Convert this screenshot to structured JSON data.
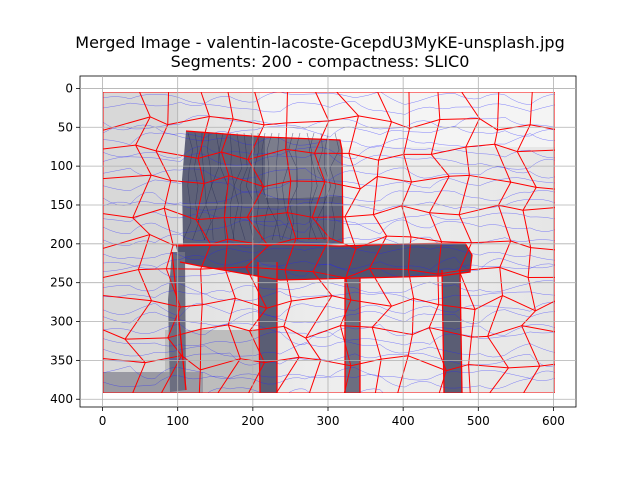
{
  "chart_data": {
    "type": "image",
    "title": "Merged Image - valentin-lacoste-GcepdU3MyKE-unsplash.jpg",
    "subtitle": "Segments: 200 - compactness: SLIC0",
    "x_ticks": [
      "0",
      "100",
      "200",
      "300",
      "400",
      "500",
      "600"
    ],
    "y_ticks": [
      "0",
      "50",
      "100",
      "150",
      "200",
      "250",
      "300",
      "350",
      "400"
    ],
    "xlim": [
      -30,
      630
    ],
    "ylim": [
      410,
      -16
    ],
    "image_extent": {
      "x": [
        0,
        600
      ],
      "y": [
        0,
        400
      ]
    },
    "grid": true,
    "segments": 200,
    "compactness": "SLIC0",
    "colors": {
      "background": "#e8e8e8",
      "chair": "#54597a",
      "chair_mid": "#6b6f82",
      "boundaries": "#ff0000",
      "contours": "#2020ff",
      "grid": "#b0b0b0"
    }
  }
}
